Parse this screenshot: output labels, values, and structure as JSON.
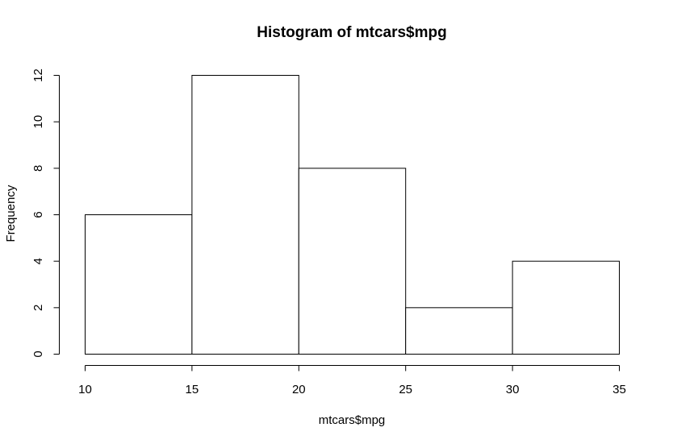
{
  "chart_data": {
    "type": "bar",
    "title": "Histogram of mtcars$mpg",
    "xlabel": "mtcars$mpg",
    "ylabel": "Frequency",
    "bins": [
      {
        "start": 10,
        "end": 15,
        "value": 6
      },
      {
        "start": 15,
        "end": 20,
        "value": 12
      },
      {
        "start": 20,
        "end": 25,
        "value": 8
      },
      {
        "start": 25,
        "end": 30,
        "value": 2
      },
      {
        "start": 30,
        "end": 35,
        "value": 4
      }
    ],
    "xlim": [
      10,
      35
    ],
    "ylim": [
      0,
      12
    ],
    "x_ticks": [
      "10",
      "15",
      "20",
      "25",
      "30",
      "35"
    ],
    "y_ticks": [
      "0",
      "2",
      "4",
      "6",
      "8",
      "10",
      "12"
    ],
    "grid": false,
    "colors": {
      "bar_fill": "#ffffff",
      "bar_stroke": "#000000"
    }
  }
}
